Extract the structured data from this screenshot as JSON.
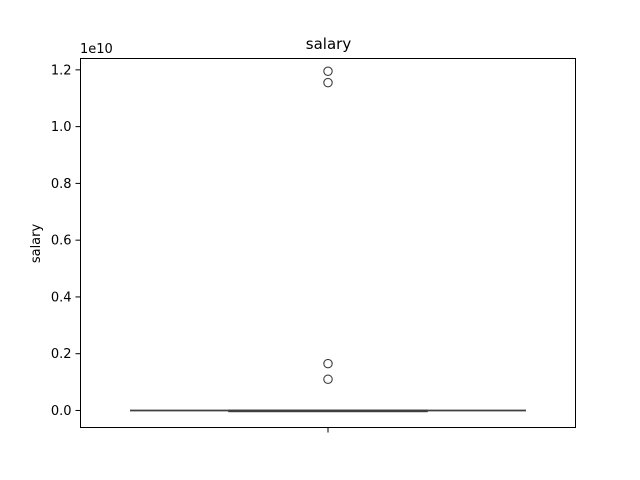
{
  "chart_data": {
    "type": "box",
    "title": "salary",
    "ylabel": "salary",
    "xlabel": "",
    "offset_label": "1e10",
    "ylim": [
      -0.06,
      1.24
    ],
    "yticks": [
      0.0,
      0.2,
      0.4,
      0.6,
      0.8,
      1.0,
      1.2
    ],
    "ytick_labels": [
      "0.0",
      "0.2",
      "0.4",
      "0.6",
      "0.8",
      "1.0",
      "1.2"
    ],
    "grid": false,
    "box": {
      "q1": 0.0,
      "median": 0.0,
      "q3": 0.0,
      "whisker_low": 0.0,
      "whisker_high": 0.0
    },
    "outliers": [
      1.195,
      1.155,
      0.165,
      0.11
    ],
    "colors": {
      "box_line": "#3f3f3f",
      "outlier_edge": "#3f3f3f",
      "axes": "#000000"
    }
  }
}
